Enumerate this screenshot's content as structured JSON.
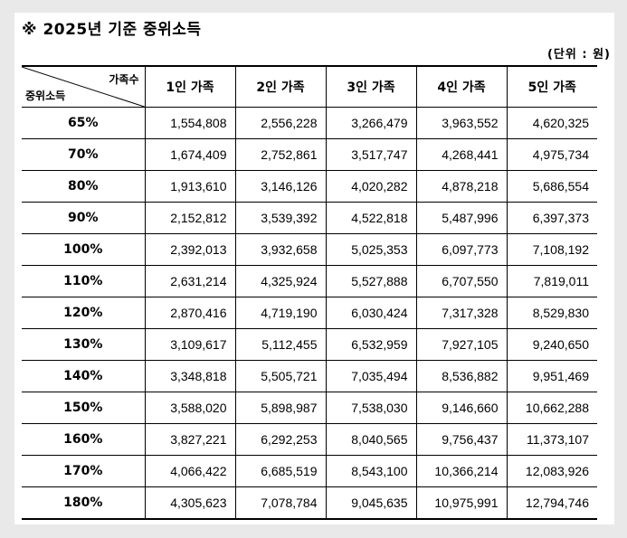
{
  "document": {
    "title": "※ 2025년 기준 중위소득",
    "unit": "(단위 : 원)"
  },
  "table": {
    "corner_top": "가족수",
    "corner_bottom": "중위소득",
    "columns": [
      "1인 가족",
      "2인 가족",
      "3인 가족",
      "4인 가족",
      "5인 가족"
    ],
    "rows": [
      {
        "label": "65%",
        "values": [
          "1,554,808",
          "2,556,228",
          "3,266,479",
          "3,963,552",
          "4,620,325"
        ]
      },
      {
        "label": "70%",
        "values": [
          "1,674,409",
          "2,752,861",
          "3,517,747",
          "4,268,441",
          "4,975,734"
        ]
      },
      {
        "label": "80%",
        "values": [
          "1,913,610",
          "3,146,126",
          "4,020,282",
          "4,878,218",
          "5,686,554"
        ]
      },
      {
        "label": "90%",
        "values": [
          "2,152,812",
          "3,539,392",
          "4,522,818",
          "5,487,996",
          "6,397,373"
        ]
      },
      {
        "label": "100%",
        "values": [
          "2,392,013",
          "3,932,658",
          "5,025,353",
          "6,097,773",
          "7,108,192"
        ]
      },
      {
        "label": "110%",
        "values": [
          "2,631,214",
          "4,325,924",
          "5,527,888",
          "6,707,550",
          "7,819,011"
        ]
      },
      {
        "label": "120%",
        "values": [
          "2,870,416",
          "4,719,190",
          "6,030,424",
          "7,317,328",
          "8,529,830"
        ]
      },
      {
        "label": "130%",
        "values": [
          "3,109,617",
          "5,112,455",
          "6,532,959",
          "7,927,105",
          "9,240,650"
        ]
      },
      {
        "label": "140%",
        "values": [
          "3,348,818",
          "5,505,721",
          "7,035,494",
          "8,536,882",
          "9,951,469"
        ]
      },
      {
        "label": "150%",
        "values": [
          "3,588,020",
          "5,898,987",
          "7,538,030",
          "9,146,660",
          "10,662,288"
        ]
      },
      {
        "label": "160%",
        "values": [
          "3,827,221",
          "6,292,253",
          "8,040,565",
          "9,756,437",
          "11,373,107"
        ]
      },
      {
        "label": "170%",
        "values": [
          "4,066,422",
          "6,685,519",
          "8,543,100",
          "10,366,214",
          "12,083,926"
        ]
      },
      {
        "label": "180%",
        "values": [
          "4,305,623",
          "7,078,784",
          "9,045,635",
          "10,975,991",
          "12,794,746"
        ]
      }
    ]
  }
}
